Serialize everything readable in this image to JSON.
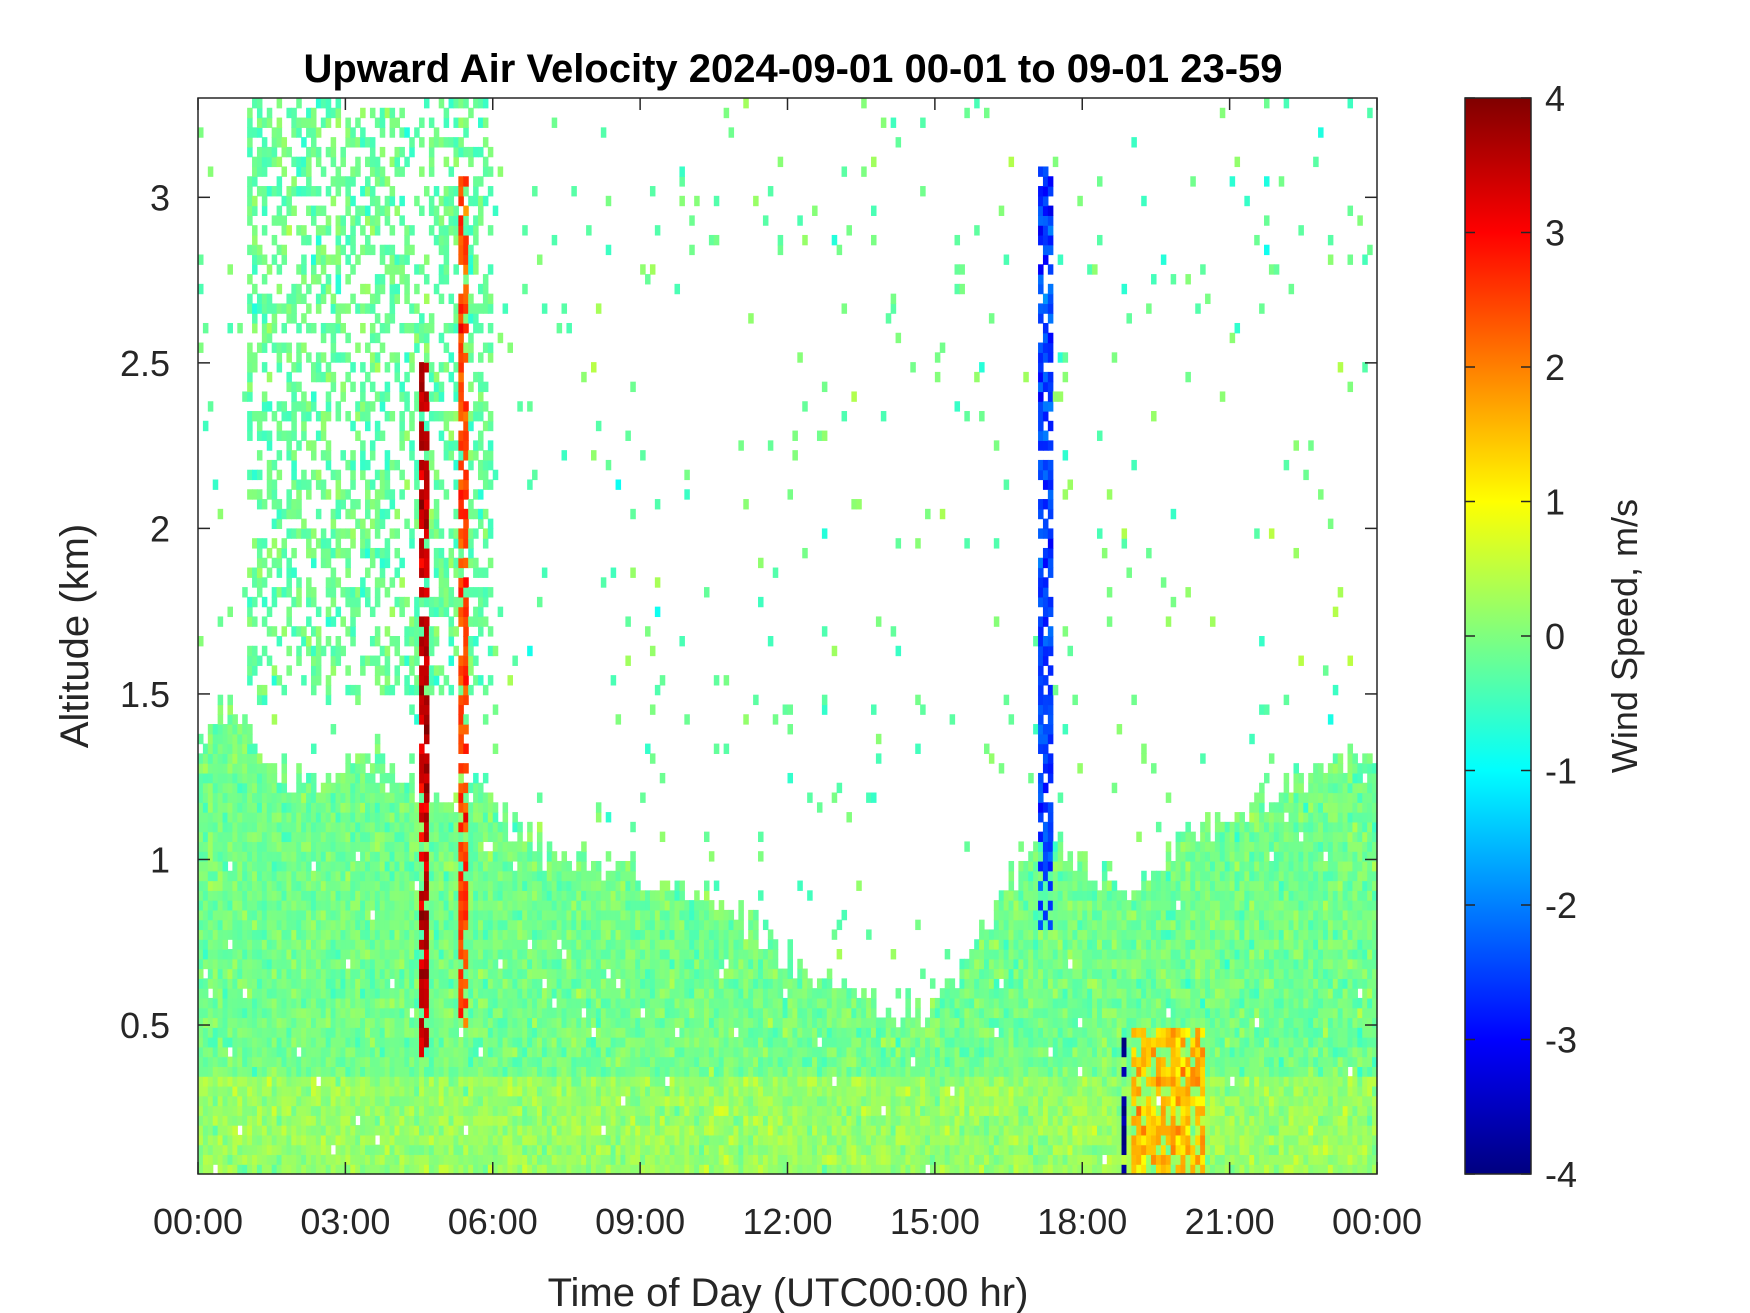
{
  "chart_data": {
    "type": "heatmap",
    "title": "Upward Air Velocity 2024-09-01 00-01 to 09-01 23-59",
    "xlabel": "Time of Day (UTC00:00 hr)",
    "ylabel": "Altitude (km)",
    "xlim_hours": [
      0,
      24
    ],
    "ylim_km": [
      0.05,
      3.3
    ],
    "x_tick_labels": [
      "00:00",
      "03:00",
      "06:00",
      "09:00",
      "12:00",
      "15:00",
      "18:00",
      "21:00",
      "00:00"
    ],
    "y_ticks": [
      0.5,
      1,
      1.5,
      2,
      2.5,
      3
    ],
    "y_tick_labels": [
      "0.5",
      "1",
      "1.5",
      "2",
      "2.5",
      "3"
    ],
    "colorbar": {
      "label": "Wind Speed, m/s",
      "range": [
        -4,
        4
      ],
      "ticks": [
        -4,
        -3,
        -2,
        -1,
        0,
        1,
        2,
        3,
        4
      ],
      "tick_labels": [
        "-4",
        "-3",
        "-2",
        "-1",
        "0",
        "1",
        "2",
        "3",
        "4"
      ],
      "colormap": "jet"
    },
    "grid": false,
    "data_top_approx_km": [
      [
        0.0,
        1.35
      ],
      [
        0.5,
        1.45
      ],
      [
        1.0,
        1.45
      ],
      [
        1.5,
        1.3
      ],
      [
        2.0,
        1.25
      ],
      [
        2.5,
        1.2
      ],
      [
        3.0,
        1.3
      ],
      [
        3.5,
        1.35
      ],
      [
        4.0,
        1.3
      ],
      [
        4.5,
        1.2
      ],
      [
        5.0,
        1.15
      ],
      [
        5.5,
        1.25
      ],
      [
        6.0,
        1.15
      ],
      [
        6.5,
        1.1
      ],
      [
        7.0,
        1.05
      ],
      [
        8.0,
        1.0
      ],
      [
        9.0,
        0.95
      ],
      [
        10.0,
        0.9
      ],
      [
        11.0,
        0.85
      ],
      [
        12.0,
        0.7
      ],
      [
        13.0,
        0.6
      ],
      [
        14.0,
        0.55
      ],
      [
        15.0,
        0.55
      ],
      [
        16.0,
        0.8
      ],
      [
        17.0,
        1.05
      ],
      [
        18.0,
        1.0
      ],
      [
        19.0,
        0.9
      ],
      [
        20.0,
        1.05
      ],
      [
        21.0,
        1.15
      ],
      [
        22.0,
        1.2
      ],
      [
        23.0,
        1.3
      ],
      [
        24.0,
        1.3
      ]
    ],
    "notable_features": [
      {
        "x_range_hours": [
          1.0,
          6.0
        ],
        "y_range_km": [
          1.5,
          3.3
        ],
        "mean_velocity_ms": -0.2
      },
      {
        "x_range_hours": [
          4.5,
          4.65
        ],
        "y_range_km": [
          0.4,
          2.5
        ],
        "mean_velocity_ms": 3.5
      },
      {
        "x_range_hours": [
          5.3,
          5.45
        ],
        "y_range_km": [
          0.5,
          3.1
        ],
        "mean_velocity_ms": 2.5
      },
      {
        "x_range_hours": [
          17.1,
          17.4
        ],
        "y_range_km": [
          0.8,
          3.1
        ],
        "mean_velocity_ms": -2.5
      },
      {
        "x_range_hours": [
          18.8,
          18.9
        ],
        "y_range_km": [
          0.05,
          0.5
        ],
        "mean_velocity_ms": -4.0
      },
      {
        "x_range_hours": [
          19.0,
          20.5
        ],
        "y_range_km": [
          0.05,
          0.5
        ],
        "mean_velocity_ms": 1.5
      }
    ]
  }
}
